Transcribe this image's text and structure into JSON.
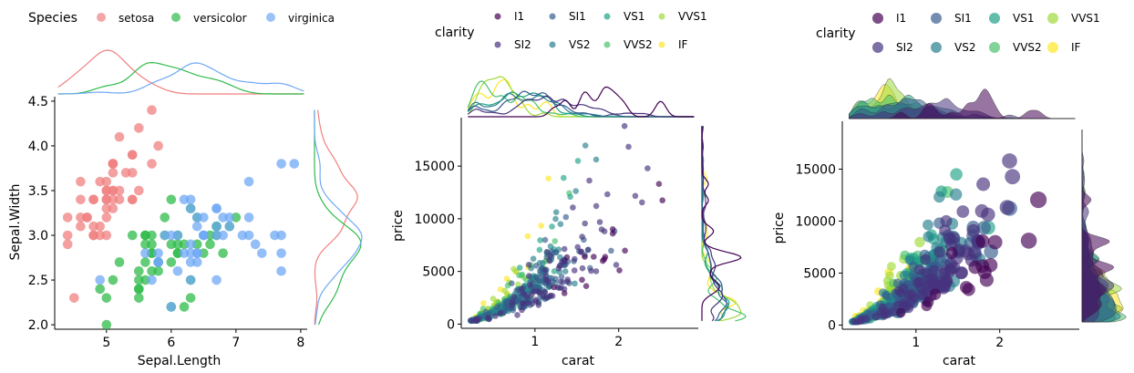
{
  "chart_data": [
    {
      "type": "scatter",
      "title": "",
      "xlabel": "Sepal.Length",
      "ylabel": "Sepal.Width",
      "xlim": [
        4.2,
        8.1
      ],
      "ylim": [
        1.95,
        4.55
      ],
      "xticks": [
        5,
        6,
        7,
        8
      ],
      "yticks": [
        2.0,
        2.5,
        3.0,
        3.5,
        4.0,
        4.5
      ],
      "xtick_labels": [
        "5",
        "6",
        "7",
        "8"
      ],
      "ytick_labels": [
        "2.0",
        "2.5",
        "3.0",
        "3.5",
        "4.0",
        "4.5"
      ],
      "legend": {
        "title": "Species",
        "position": "top-left"
      },
      "marginal": "density",
      "series": [
        {
          "name": "setosa",
          "color": "#F08080",
          "points": [
            [
              4.4,
              3.0
            ],
            [
              4.4,
              2.9
            ],
            [
              4.4,
              3.2
            ],
            [
              4.5,
              2.3
            ],
            [
              4.6,
              3.1
            ],
            [
              4.6,
              3.4
            ],
            [
              4.6,
              3.6
            ],
            [
              4.6,
              3.2
            ],
            [
              4.7,
              3.2
            ],
            [
              4.7,
              3.2
            ],
            [
              4.8,
              3.4
            ],
            [
              4.8,
              3.0
            ],
            [
              4.8,
              3.4
            ],
            [
              4.8,
              3.1
            ],
            [
              4.8,
              3.0
            ],
            [
              4.9,
              3.0
            ],
            [
              4.9,
              3.1
            ],
            [
              4.9,
              3.6
            ],
            [
              5.0,
              3.6
            ],
            [
              5.0,
              3.4
            ],
            [
              5.0,
              3.0
            ],
            [
              5.0,
              3.4
            ],
            [
              5.0,
              3.2
            ],
            [
              5.0,
              3.5
            ],
            [
              5.0,
              3.3
            ],
            [
              5.0,
              3.5
            ],
            [
              5.1,
              3.5
            ],
            [
              5.1,
              3.5
            ],
            [
              5.1,
              3.8
            ],
            [
              5.1,
              3.7
            ],
            [
              5.1,
              3.3
            ],
            [
              5.1,
              3.4
            ],
            [
              5.1,
              3.8
            ],
            [
              5.1,
              3.8
            ],
            [
              5.2,
              3.5
            ],
            [
              5.2,
              3.4
            ],
            [
              5.2,
              4.1
            ],
            [
              5.3,
              3.7
            ],
            [
              5.4,
              3.9
            ],
            [
              5.4,
              3.7
            ],
            [
              5.4,
              3.9
            ],
            [
              5.4,
              3.4
            ],
            [
              5.4,
              3.4
            ],
            [
              5.5,
              4.2
            ],
            [
              5.5,
              3.5
            ],
            [
              5.7,
              4.4
            ],
            [
              5.7,
              3.8
            ],
            [
              5.8,
              4.0
            ]
          ]
        },
        {
          "name": "versicolor",
          "color": "#2EBB4A",
          "points": [
            [
              4.9,
              2.4
            ],
            [
              5.0,
              2.0
            ],
            [
              5.0,
              2.3
            ],
            [
              5.1,
              2.5
            ],
            [
              5.2,
              2.7
            ],
            [
              5.4,
              3.0
            ],
            [
              5.5,
              2.3
            ],
            [
              5.5,
              2.4
            ],
            [
              5.5,
              2.4
            ],
            [
              5.5,
              2.5
            ],
            [
              5.5,
              2.6
            ],
            [
              5.6,
              2.9
            ],
            [
              5.6,
              3.0
            ],
            [
              5.6,
              2.5
            ],
            [
              5.6,
              2.7
            ],
            [
              5.6,
              3.0
            ],
            [
              5.7,
              2.8
            ],
            [
              5.7,
              2.6
            ],
            [
              5.7,
              3.0
            ],
            [
              5.7,
              2.9
            ],
            [
              5.7,
              2.8
            ],
            [
              5.8,
              2.7
            ],
            [
              5.8,
              2.7
            ],
            [
              5.8,
              2.6
            ],
            [
              5.9,
              3.0
            ],
            [
              5.9,
              3.2
            ],
            [
              6.0,
              2.2
            ],
            [
              6.0,
              2.9
            ],
            [
              6.0,
              2.7
            ],
            [
              6.0,
              3.4
            ],
            [
              6.1,
              2.8
            ],
            [
              6.1,
              3.0
            ],
            [
              6.1,
              2.8
            ],
            [
              6.1,
              2.9
            ],
            [
              6.2,
              2.2
            ],
            [
              6.2,
              2.9
            ],
            [
              6.3,
              3.3
            ],
            [
              6.3,
              2.5
            ],
            [
              6.3,
              2.3
            ],
            [
              6.4,
              3.2
            ],
            [
              6.4,
              2.9
            ],
            [
              6.5,
              2.8
            ],
            [
              6.6,
              2.9
            ],
            [
              6.6,
              3.0
            ],
            [
              6.7,
              3.1
            ],
            [
              6.7,
              3.0
            ],
            [
              6.7,
              3.1
            ],
            [
              6.8,
              2.8
            ],
            [
              6.9,
              3.1
            ],
            [
              7.0,
              3.2
            ]
          ]
        },
        {
          "name": "virginica",
          "color": "#6FA8F5",
          "points": [
            [
              4.9,
              2.5
            ],
            [
              5.6,
              2.8
            ],
            [
              5.7,
              2.5
            ],
            [
              5.8,
              2.7
            ],
            [
              5.8,
              2.8
            ],
            [
              5.8,
              2.7
            ],
            [
              5.9,
              3.0
            ],
            [
              6.0,
              2.2
            ],
            [
              6.0,
              3.0
            ],
            [
              6.1,
              3.0
            ],
            [
              6.1,
              2.6
            ],
            [
              6.2,
              2.8
            ],
            [
              6.2,
              3.4
            ],
            [
              6.3,
              3.3
            ],
            [
              6.3,
              2.9
            ],
            [
              6.3,
              2.7
            ],
            [
              6.3,
              2.8
            ],
            [
              6.3,
              2.5
            ],
            [
              6.3,
              3.4
            ],
            [
              6.4,
              2.7
            ],
            [
              6.4,
              3.2
            ],
            [
              6.4,
              2.8
            ],
            [
              6.4,
              2.8
            ],
            [
              6.4,
              3.1
            ],
            [
              6.5,
              3.0
            ],
            [
              6.5,
              3.2
            ],
            [
              6.5,
              3.0
            ],
            [
              6.5,
              3.0
            ],
            [
              6.7,
              2.5
            ],
            [
              6.7,
              3.3
            ],
            [
              6.7,
              3.1
            ],
            [
              6.7,
              3.0
            ],
            [
              6.7,
              3.3
            ],
            [
              6.8,
              3.0
            ],
            [
              6.8,
              3.2
            ],
            [
              6.9,
              3.2
            ],
            [
              6.9,
              3.1
            ],
            [
              7.1,
              3.0
            ],
            [
              7.2,
              3.6
            ],
            [
              7.2,
              3.2
            ],
            [
              7.2,
              3.0
            ],
            [
              7.3,
              2.9
            ],
            [
              7.4,
              2.8
            ],
            [
              7.6,
              3.0
            ],
            [
              7.7,
              3.8
            ],
            [
              7.7,
              2.6
            ],
            [
              7.7,
              2.8
            ],
            [
              7.7,
              3.0
            ],
            [
              7.9,
              3.8
            ]
          ]
        }
      ]
    },
    {
      "type": "scatter",
      "title": "",
      "xlabel": "carat",
      "ylabel": "price",
      "xlim": [
        0.12,
        2.95
      ],
      "ylim": [
        -400,
        19600
      ],
      "xticks": [
        1,
        2
      ],
      "yticks": [
        0,
        5000,
        10000,
        15000
      ],
      "xtick_labels": [
        "1",
        "2"
      ],
      "ytick_labels": [
        "0",
        "5000",
        "10000",
        "15000"
      ],
      "legend": {
        "title": "clarity",
        "position": "top"
      },
      "marker_size": "small",
      "marginal": "density",
      "series": [
        {
          "name": "I1",
          "color": "#440154"
        },
        {
          "name": "SI2",
          "color": "#46337E"
        },
        {
          "name": "SI1",
          "color": "#365C8D"
        },
        {
          "name": "VS2",
          "color": "#277F8E"
        },
        {
          "name": "VS1",
          "color": "#1FA187"
        },
        {
          "name": "VVS2",
          "color": "#4AC16D"
        },
        {
          "name": "VVS1",
          "color": "#9FDA3A"
        },
        {
          "name": "IF",
          "color": "#FDE725"
        }
      ]
    },
    {
      "type": "scatter",
      "title": "",
      "xlabel": "carat",
      "ylabel": "price",
      "xlim": [
        0.12,
        2.95
      ],
      "ylim": [
        -400,
        19600
      ],
      "xticks": [
        1,
        2
      ],
      "yticks": [
        0,
        5000,
        10000,
        15000
      ],
      "xtick_labels": [
        "1",
        "2"
      ],
      "ytick_labels": [
        "0",
        "5000",
        "10000",
        "15000"
      ],
      "legend": {
        "title": "clarity",
        "position": "top"
      },
      "marker_size": "large",
      "marginal": "filled-density",
      "series": [
        {
          "name": "I1",
          "color": "#440154"
        },
        {
          "name": "SI2",
          "color": "#46337E"
        },
        {
          "name": "SI1",
          "color": "#365C8D"
        },
        {
          "name": "VS2",
          "color": "#277F8E"
        },
        {
          "name": "VS1",
          "color": "#1FA187"
        },
        {
          "name": "VVS2",
          "color": "#4AC16D"
        },
        {
          "name": "VVS1",
          "color": "#9FDA3A"
        },
        {
          "name": "IF",
          "color": "#FDE725"
        }
      ]
    }
  ]
}
